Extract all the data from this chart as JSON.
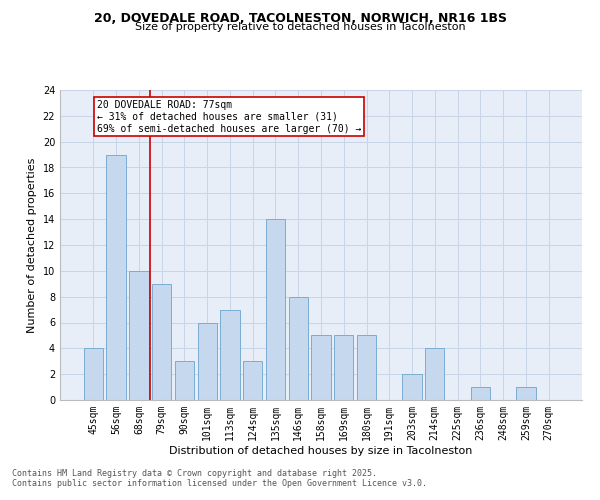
{
  "title1": "20, DOVEDALE ROAD, TACOLNESTON, NORWICH, NR16 1BS",
  "title2": "Size of property relative to detached houses in Tacolneston",
  "xlabel": "Distribution of detached houses by size in Tacolneston",
  "ylabel": "Number of detached properties",
  "categories": [
    "45sqm",
    "56sqm",
    "68sqm",
    "79sqm",
    "90sqm",
    "101sqm",
    "113sqm",
    "124sqm",
    "135sqm",
    "146sqm",
    "158sqm",
    "169sqm",
    "180sqm",
    "191sqm",
    "203sqm",
    "214sqm",
    "225sqm",
    "236sqm",
    "248sqm",
    "259sqm",
    "270sqm"
  ],
  "values": [
    4,
    19,
    10,
    9,
    3,
    6,
    7,
    3,
    14,
    8,
    5,
    5,
    5,
    0,
    2,
    4,
    0,
    1,
    0,
    1,
    0
  ],
  "bar_color": "#c5d8ee",
  "bar_edgecolor": "#7aadd4",
  "redline_index": 2.5,
  "annotation_text": "20 DOVEDALE ROAD: 77sqm\n← 31% of detached houses are smaller (31)\n69% of semi-detached houses are larger (70) →",
  "annotation_box_edgecolor": "#cc0000",
  "ylim": [
    0,
    24
  ],
  "yticks": [
    0,
    2,
    4,
    6,
    8,
    10,
    12,
    14,
    16,
    18,
    20,
    22,
    24
  ],
  "grid_color": "#c8d4e8",
  "bg_color": "#e8eef8",
  "footer1": "Contains HM Land Registry data © Crown copyright and database right 2025.",
  "footer2": "Contains public sector information licensed under the Open Government Licence v3.0.",
  "title_fontsize": 9,
  "subtitle_fontsize": 8,
  "axis_label_fontsize": 8,
  "tick_fontsize": 7,
  "annotation_fontsize": 7,
  "footer_fontsize": 6
}
